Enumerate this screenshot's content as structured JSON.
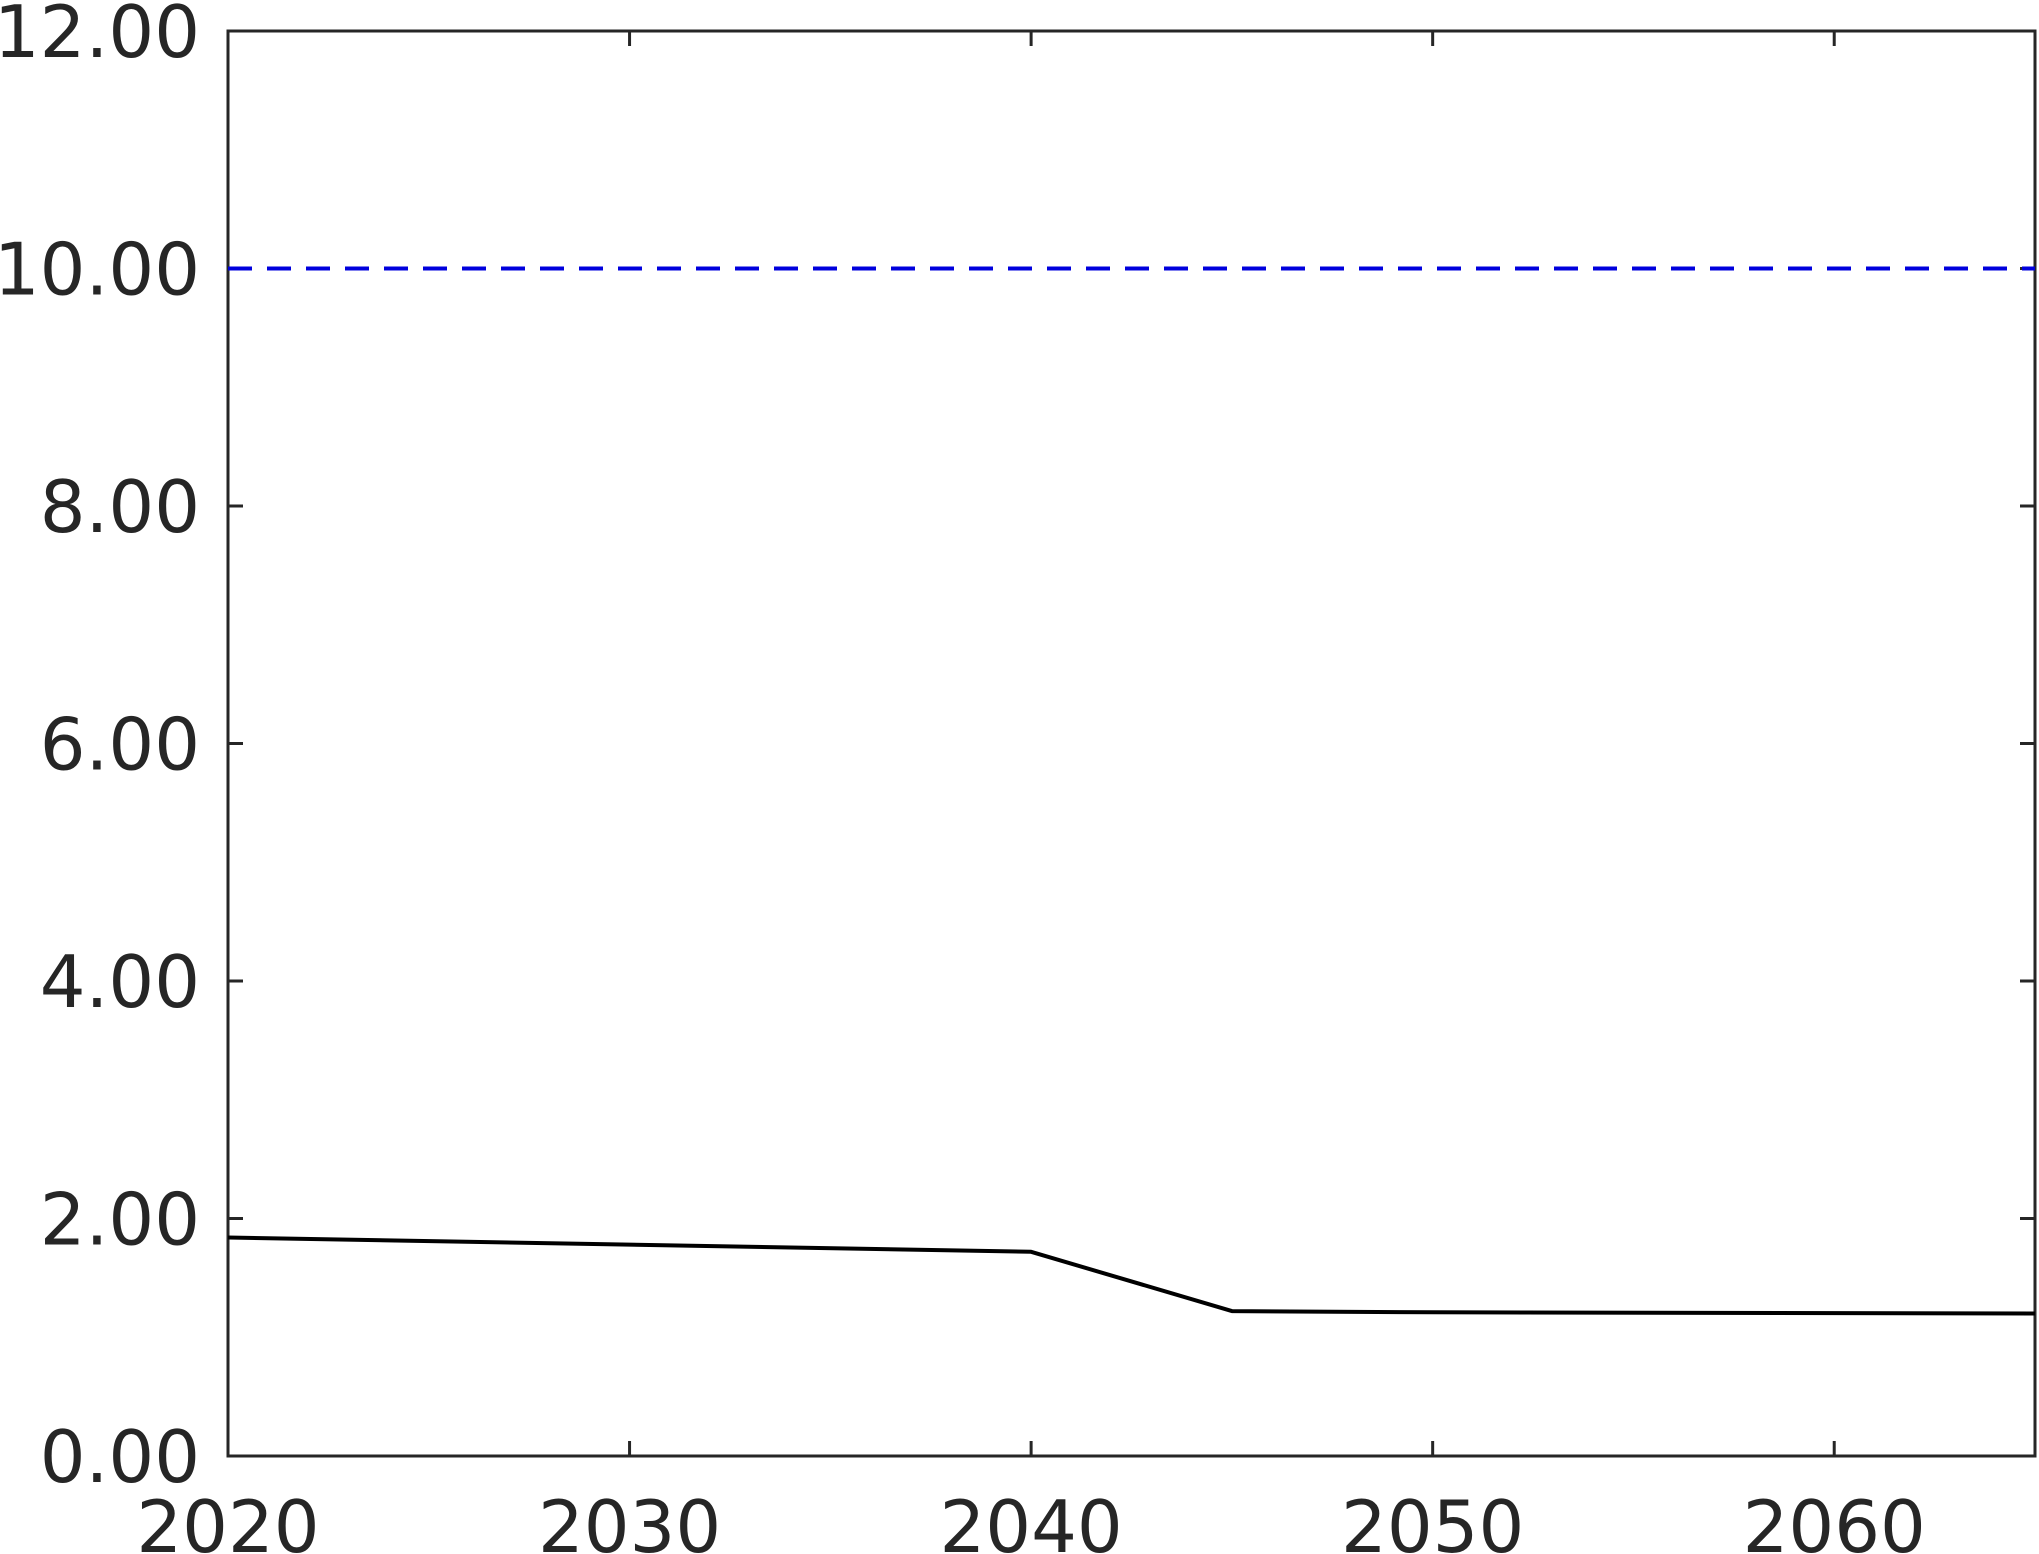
{
  "chart_data": {
    "type": "line",
    "title": "",
    "xlabel": "",
    "ylabel": "",
    "xlim": [
      2020,
      2065
    ],
    "ylim": [
      0,
      12
    ],
    "x_ticks": [
      2020,
      2030,
      2040,
      2050,
      2060
    ],
    "x_tick_labels": [
      "2020",
      "2030",
      "2040",
      "2050",
      "2060"
    ],
    "y_ticks": [
      0,
      2,
      4,
      6,
      8,
      10,
      12
    ],
    "y_tick_labels": [
      "0.00",
      "2.00",
      "4.00",
      "6.00",
      "8.00",
      "10.00",
      "12.00"
    ],
    "grid": false,
    "series": [
      {
        "x": [
          2020,
          2040,
          2045,
          2050,
          2065
        ],
        "y": [
          1.84,
          1.72,
          1.22,
          1.21,
          1.2
        ],
        "color": "#000000",
        "style": "solid"
      },
      {
        "x": [
          2020,
          2065
        ],
        "y": [
          10.0,
          10.0
        ],
        "color": "#0000dd",
        "style": "dashed"
      }
    ]
  }
}
